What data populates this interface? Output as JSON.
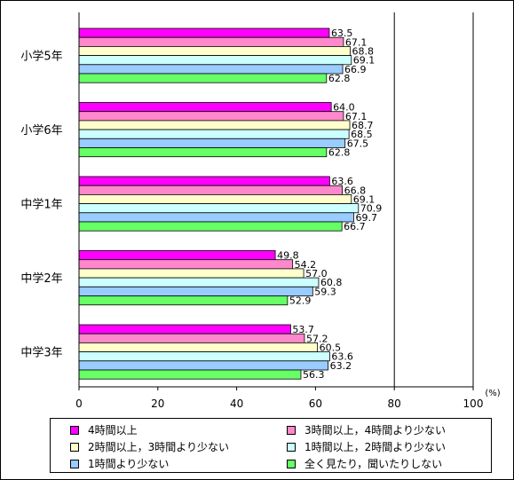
{
  "chart_data": {
    "type": "bar",
    "orientation": "horizontal",
    "categories": [
      "小学5年",
      "小学6年",
      "中学1年",
      "中学2年",
      "中学3年"
    ],
    "series": [
      {
        "name": "4時間以上",
        "color": "#ff00ff",
        "values": [
          63.5,
          64.0,
          63.6,
          49.8,
          53.7
        ]
      },
      {
        "name": "3時間以上，4時間より少ない",
        "color": "#ff88cc",
        "values": [
          67.1,
          67.1,
          66.8,
          54.2,
          57.2
        ]
      },
      {
        "name": "2時間以上，3時間より少ない",
        "color": "#ffffcc",
        "values": [
          68.8,
          68.7,
          69.1,
          57.0,
          60.5
        ]
      },
      {
        "name": "1時間以上，2時間より少ない",
        "color": "#ccffff",
        "values": [
          69.1,
          68.5,
          70.9,
          60.8,
          63.6
        ]
      },
      {
        "name": "1時間より少ない",
        "color": "#99ccff",
        "values": [
          66.9,
          67.5,
          69.7,
          59.3,
          63.2
        ]
      },
      {
        "name": "全く見たり，聞いたりしない",
        "color": "#66ff66",
        "values": [
          62.8,
          62.8,
          66.7,
          52.9,
          56.3
        ]
      }
    ],
    "value_labels": [
      [
        "63.5",
        "67.1",
        "68.8",
        "69.1",
        "66.9",
        "62.8"
      ],
      [
        "64.0",
        "67.1",
        "68.7",
        "68.5",
        "67.5",
        "62.8"
      ],
      [
        "63.6",
        "66.8",
        "69.1",
        "70.9",
        "69.7",
        "66.7"
      ],
      [
        "49.8",
        "54.2",
        "57.0",
        "60.8",
        "59.3",
        "52.9"
      ],
      [
        "53.7",
        "57.2",
        "60.5",
        "63.6",
        "63.2",
        "56.3"
      ]
    ],
    "xlim": [
      0,
      100
    ],
    "xticks": [
      "0",
      "20",
      "40",
      "60",
      "80",
      "100"
    ],
    "unit_label": "(%)",
    "grid": "vertical",
    "legend_placement": "bottom"
  }
}
